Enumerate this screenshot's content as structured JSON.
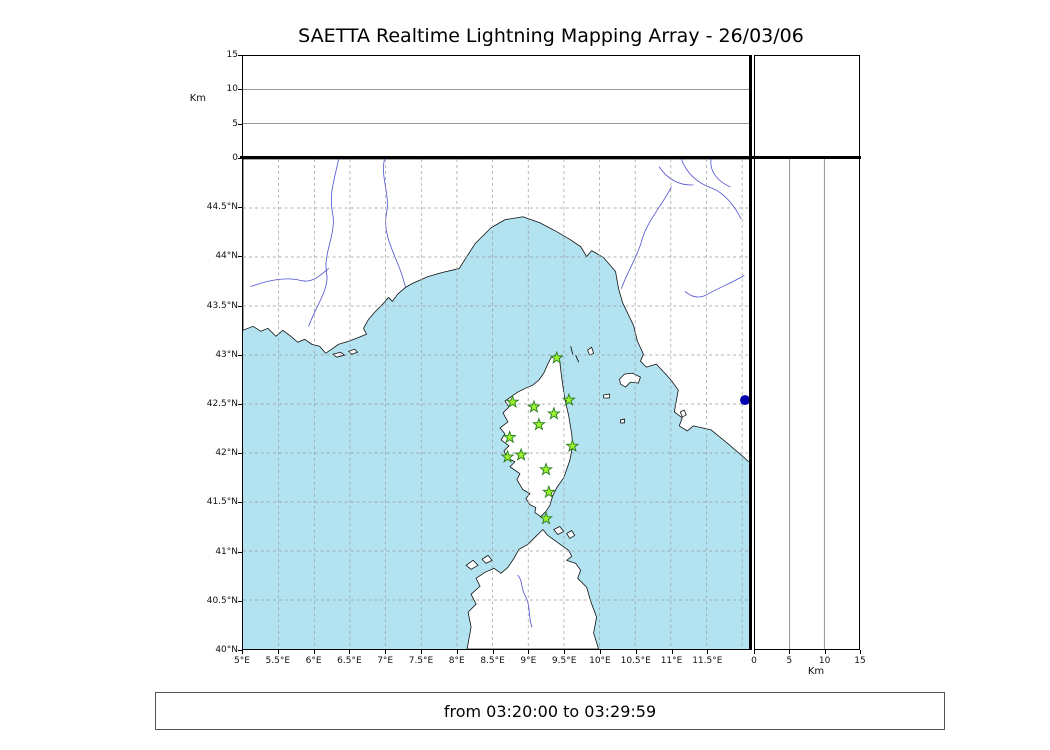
{
  "title": "SAETTA Realtime Lightning Mapping Array - 26/03/06",
  "time_range_label": "from 03:20:00 to 03:29:59",
  "axes": {
    "km_label_top": "Km",
    "km_label_right": "Km",
    "altitude_gridlines_km": [
      5,
      10
    ],
    "altitude_ticks_top": [
      {
        "label": "15",
        "value": 15
      },
      {
        "label": "10",
        "value": 10
      },
      {
        "label": "5",
        "value": 5
      },
      {
        "label": "0",
        "value": 0
      }
    ],
    "altitude_ticks_right": [
      {
        "label": "0",
        "value": 0
      },
      {
        "label": "5",
        "value": 5
      },
      {
        "label": "10",
        "value": 10
      },
      {
        "label": "15",
        "value": 15
      }
    ],
    "lat_ticks": [
      {
        "label": "44.5°N",
        "value": 44.5
      },
      {
        "label": "44°N",
        "value": 44.0
      },
      {
        "label": "43.5°N",
        "value": 43.5
      },
      {
        "label": "43°N",
        "value": 43.0
      },
      {
        "label": "42.5°N",
        "value": 42.5
      },
      {
        "label": "42°N",
        "value": 42.0
      },
      {
        "label": "41.5°N",
        "value": 41.5
      },
      {
        "label": "41°N",
        "value": 41.0
      },
      {
        "label": "40.5°N",
        "value": 40.5
      },
      {
        "label": "40°N",
        "value": 40.0
      }
    ],
    "lon_ticks": [
      {
        "label": "5°E",
        "value": 5.0
      },
      {
        "label": "5.5°E",
        "value": 5.5
      },
      {
        "label": "6°E",
        "value": 6.0
      },
      {
        "label": "6.5°E",
        "value": 6.5
      },
      {
        "label": "7°E",
        "value": 7.0
      },
      {
        "label": "7.5°E",
        "value": 7.5
      },
      {
        "label": "8°E",
        "value": 8.0
      },
      {
        "label": "8.5°E",
        "value": 8.5
      },
      {
        "label": "9°E",
        "value": 9.0
      },
      {
        "label": "9.5°E",
        "value": 9.5
      },
      {
        "label": "10°E",
        "value": 10.0
      },
      {
        "label": "10.5°E",
        "value": 10.5
      },
      {
        "label": "11°E",
        "value": 11.0
      },
      {
        "label": "11.5°E",
        "value": 11.5
      }
    ]
  },
  "chart_data": {
    "type": "scatter",
    "title": "SAETTA Realtime Lightning Mapping Array - 26/03/06",
    "time_window": "from 03:20:00 to 03:29:59",
    "map_extent": {
      "lon_min": 5.0,
      "lon_max": 12.11,
      "lat_min": 40.0,
      "lat_max": 45.0
    },
    "altitude_range_km": [
      0,
      15
    ],
    "grid": "dashed lines every 0.5 degree",
    "stations": {
      "marker": "star",
      "color": "#9bf42d",
      "points": [
        {
          "lon": 9.4,
          "lat": 42.97
        },
        {
          "lon": 8.78,
          "lat": 42.52
        },
        {
          "lon": 9.08,
          "lat": 42.47
        },
        {
          "lon": 9.57,
          "lat": 42.54
        },
        {
          "lon": 9.36,
          "lat": 42.4
        },
        {
          "lon": 9.15,
          "lat": 42.29
        },
        {
          "lon": 8.74,
          "lat": 42.16
        },
        {
          "lon": 9.62,
          "lat": 42.07
        },
        {
          "lon": 8.9,
          "lat": 41.98
        },
        {
          "lon": 8.71,
          "lat": 41.96
        },
        {
          "lon": 9.25,
          "lat": 41.83
        },
        {
          "lon": 9.29,
          "lat": 41.6
        },
        {
          "lon": 9.25,
          "lat": 41.33
        }
      ]
    },
    "event_marker": {
      "shape": "circle",
      "color": "#0000b0",
      "lon": 12.04,
      "lat": 42.54
    },
    "colors": {
      "sea": "#b3e3f1",
      "land": "#ffffff",
      "coast": "#111111",
      "river": "#4d4fd2",
      "grid": "#999999"
    }
  }
}
